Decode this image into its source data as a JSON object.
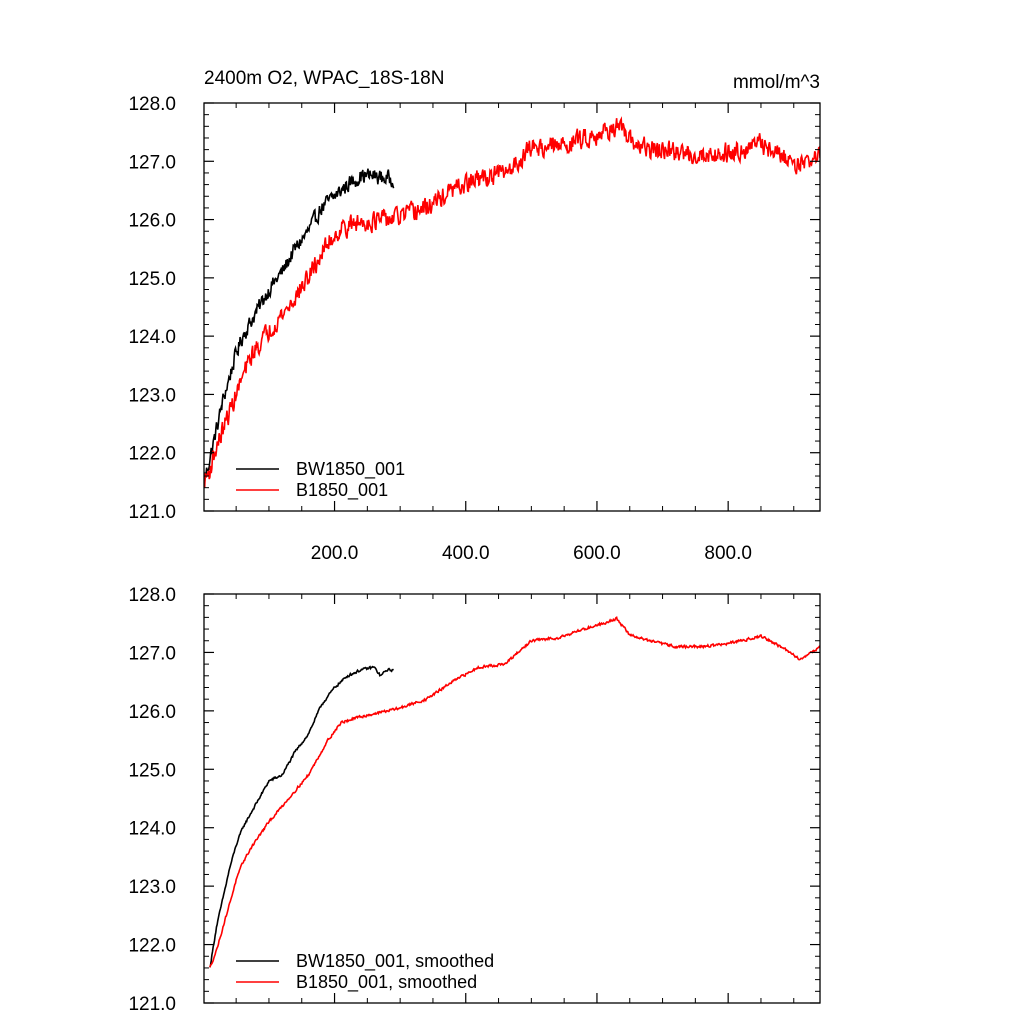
{
  "chart_data": [
    {
      "type": "line",
      "title": "2400m O2, WPAC_18S-18N",
      "units": "mmol/m^3",
      "xlabel": "",
      "ylabel": "",
      "xlim": [
        1,
        940
      ],
      "ylim": [
        121.0,
        128.0
      ],
      "x_ticks": [
        200,
        400,
        600,
        800
      ],
      "x_tick_labels": [
        "200.0",
        "400.0",
        "600.0",
        "800.0"
      ],
      "y_ticks": [
        121,
        122,
        123,
        124,
        125,
        126,
        127,
        128
      ],
      "y_tick_labels": [
        "121.0",
        "122.0",
        "123.0",
        "124.0",
        "125.0",
        "126.0",
        "127.0",
        "128.0"
      ],
      "legend_position": "bottom-left",
      "series": [
        {
          "name": "BW1850_001",
          "color": "#000000",
          "noise": 0.12,
          "points": [
            [
              1,
              121.5
            ],
            [
              10,
              121.9
            ],
            [
              20,
              122.4
            ],
            [
              30,
              122.9
            ],
            [
              40,
              123.3
            ],
            [
              50,
              123.7
            ],
            [
              60,
              124.0
            ],
            [
              75,
              124.3
            ],
            [
              90,
              124.6
            ],
            [
              100,
              124.8
            ],
            [
              120,
              125.1
            ],
            [
              140,
              125.5
            ],
            [
              160,
              125.8
            ],
            [
              180,
              126.2
            ],
            [
              200,
              126.4
            ],
            [
              220,
              126.6
            ],
            [
              240,
              126.75
            ],
            [
              260,
              126.75
            ],
            [
              280,
              126.7
            ],
            [
              290,
              126.7
            ]
          ]
        },
        {
          "name": "B1850_001",
          "color": "#ff0000",
          "noise": 0.15,
          "points": [
            [
              1,
              121.5
            ],
            [
              10,
              121.7
            ],
            [
              20,
              122.1
            ],
            [
              30,
              122.4
            ],
            [
              40,
              122.7
            ],
            [
              50,
              123.0
            ],
            [
              60,
              123.3
            ],
            [
              75,
              123.7
            ],
            [
              100,
              124.1
            ],
            [
              130,
              124.5
            ],
            [
              160,
              125.0
            ],
            [
              190,
              125.6
            ],
            [
              210,
              125.85
            ],
            [
              240,
              125.95
            ],
            [
              280,
              126.0
            ],
            [
              300,
              126.05
            ],
            [
              340,
              126.2
            ],
            [
              380,
              126.5
            ],
            [
              420,
              126.7
            ],
            [
              460,
              126.8
            ],
            [
              480,
              127.0
            ],
            [
              500,
              127.25
            ],
            [
              540,
              127.25
            ],
            [
              580,
              127.4
            ],
            [
              610,
              127.5
            ],
            [
              630,
              127.6
            ],
            [
              650,
              127.35
            ],
            [
              680,
              127.2
            ],
            [
              720,
              127.15
            ],
            [
              760,
              127.1
            ],
            [
              800,
              127.15
            ],
            [
              850,
              127.3
            ],
            [
              880,
              127.1
            ],
            [
              910,
              126.95
            ],
            [
              940,
              127.1
            ]
          ]
        }
      ]
    },
    {
      "type": "line",
      "title": "",
      "xlabel": "",
      "ylabel": "",
      "xlim": [
        1,
        940
      ],
      "ylim": [
        121.0,
        128.0
      ],
      "x_ticks": [
        200,
        400,
        600,
        800
      ],
      "x_tick_labels": [],
      "y_ticks": [
        121,
        122,
        123,
        124,
        125,
        126,
        127,
        128
      ],
      "y_tick_labels": [
        "121.0",
        "122.0",
        "123.0",
        "124.0",
        "125.0",
        "126.0",
        "127.0",
        "128.0"
      ],
      "legend_position": "bottom-left",
      "series": [
        {
          "name": "BW1850_001, smoothed",
          "color": "#000000",
          "noise": 0.02,
          "points": [
            [
              10,
              121.6
            ],
            [
              20,
              122.3
            ],
            [
              30,
              122.8
            ],
            [
              40,
              123.3
            ],
            [
              50,
              123.7
            ],
            [
              60,
              124.0
            ],
            [
              75,
              124.3
            ],
            [
              90,
              124.6
            ],
            [
              100,
              124.8
            ],
            [
              120,
              124.9
            ],
            [
              140,
              125.3
            ],
            [
              160,
              125.6
            ],
            [
              180,
              126.1
            ],
            [
              200,
              126.4
            ],
            [
              220,
              126.6
            ],
            [
              240,
              126.7
            ],
            [
              260,
              126.75
            ],
            [
              270,
              126.6
            ],
            [
              280,
              126.7
            ],
            [
              290,
              126.7
            ]
          ]
        },
        {
          "name": "B1850_001, smoothed",
          "color": "#ff0000",
          "noise": 0.02,
          "points": [
            [
              10,
              121.6
            ],
            [
              20,
              121.9
            ],
            [
              30,
              122.3
            ],
            [
              40,
              122.7
            ],
            [
              50,
              123.1
            ],
            [
              60,
              123.4
            ],
            [
              75,
              123.7
            ],
            [
              100,
              124.1
            ],
            [
              130,
              124.5
            ],
            [
              160,
              124.9
            ],
            [
              190,
              125.5
            ],
            [
              210,
              125.8
            ],
            [
              240,
              125.9
            ],
            [
              280,
              126.0
            ],
            [
              300,
              126.05
            ],
            [
              340,
              126.2
            ],
            [
              380,
              126.5
            ],
            [
              420,
              126.75
            ],
            [
              460,
              126.8
            ],
            [
              480,
              127.0
            ],
            [
              500,
              127.2
            ],
            [
              540,
              127.25
            ],
            [
              580,
              127.4
            ],
            [
              610,
              127.5
            ],
            [
              630,
              127.58
            ],
            [
              650,
              127.3
            ],
            [
              680,
              127.2
            ],
            [
              720,
              127.1
            ],
            [
              760,
              127.1
            ],
            [
              800,
              127.15
            ],
            [
              850,
              127.28
            ],
            [
              880,
              127.1
            ],
            [
              910,
              126.88
            ],
            [
              940,
              127.1
            ]
          ]
        }
      ]
    }
  ]
}
